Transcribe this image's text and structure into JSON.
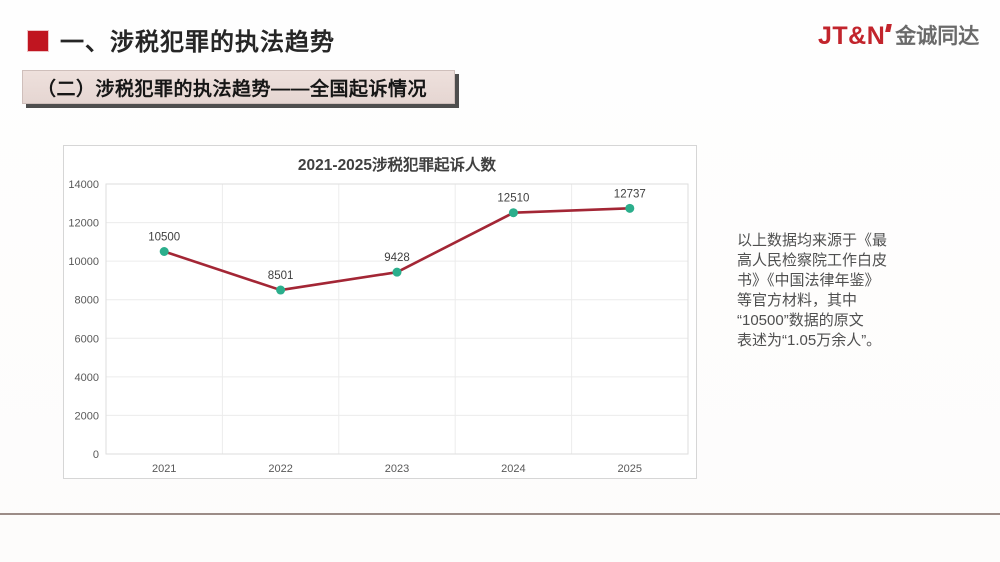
{
  "header": {
    "section_title": "一、涉税犯罪的执法趋势",
    "logo_latin": "JT&N",
    "logo_cjk": "金诚同达"
  },
  "banner": {
    "label": "（二）涉税犯罪的执法趋势——全国起诉情况"
  },
  "chart_data": {
    "type": "line",
    "title": "2021-2025涉税犯罪起诉人数",
    "categories": [
      "2021",
      "2022",
      "2023",
      "2024",
      "2025"
    ],
    "values": [
      10500,
      8501,
      9428,
      12510,
      12737
    ],
    "xlabel": "",
    "ylabel": "",
    "ylim": [
      0,
      14000
    ],
    "ytick_step": 2000,
    "grid": true,
    "legend": "none",
    "line_color": "#a32635",
    "marker_color": "#2bae8c",
    "grid_color": "#ececec",
    "axis_color": "#c8c8c8",
    "tick_label_color": "#595959",
    "data_label_color": "#3f3f3f",
    "title_color": "#404040"
  },
  "note": {
    "lines": [
      "以上数据均来源于《最",
      "高人民检察院工作白皮",
      "书》《中国法律年鉴》",
      "等官方材料，其中",
      "“10500”数据的原文",
      "表述为“1.05万余人”。"
    ]
  },
  "colors": {
    "accent_red": "#c01520",
    "logo_red": "#c2242c",
    "banner_bg": "#e8dad6",
    "banner_shadow": "#4e4e4e",
    "divider": "#9c8c87"
  }
}
